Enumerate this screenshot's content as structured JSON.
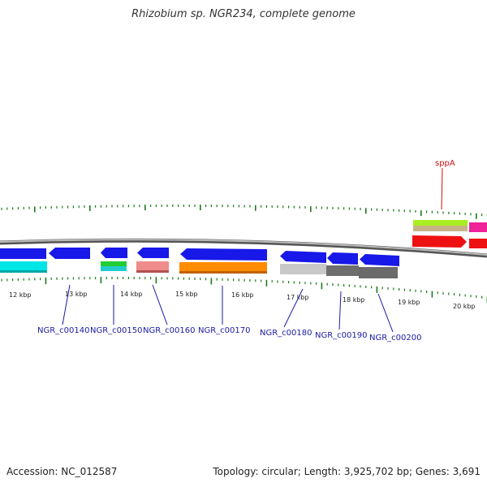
{
  "title": "Rhizobium sp. NGR234, complete genome",
  "footer": {
    "accession": "Accession: NC_012587",
    "summary": "Topology: circular; Length: 3,925,702 bp; Genes: 3,691"
  },
  "colors": {
    "blue_gene": "#1818e8",
    "tick": "#1a7a1a",
    "backbone": "#888888",
    "label_blue": "#1a1aa6",
    "label_red": "#cc1111"
  },
  "scale_labels": [
    "12 kbp",
    "13 kbp",
    "14 kbp",
    "15 kbp",
    "16 kbp",
    "17 kbp",
    "18 kbp",
    "19 kbp",
    "20 kbp"
  ],
  "gene_labels": [
    "NGR_c00140",
    "NGR_c00150",
    "NGR_c00160",
    "NGR_c00170",
    "NGR_c00180",
    "NGR_c00190",
    "NGR_c00200",
    "sppA"
  ]
}
